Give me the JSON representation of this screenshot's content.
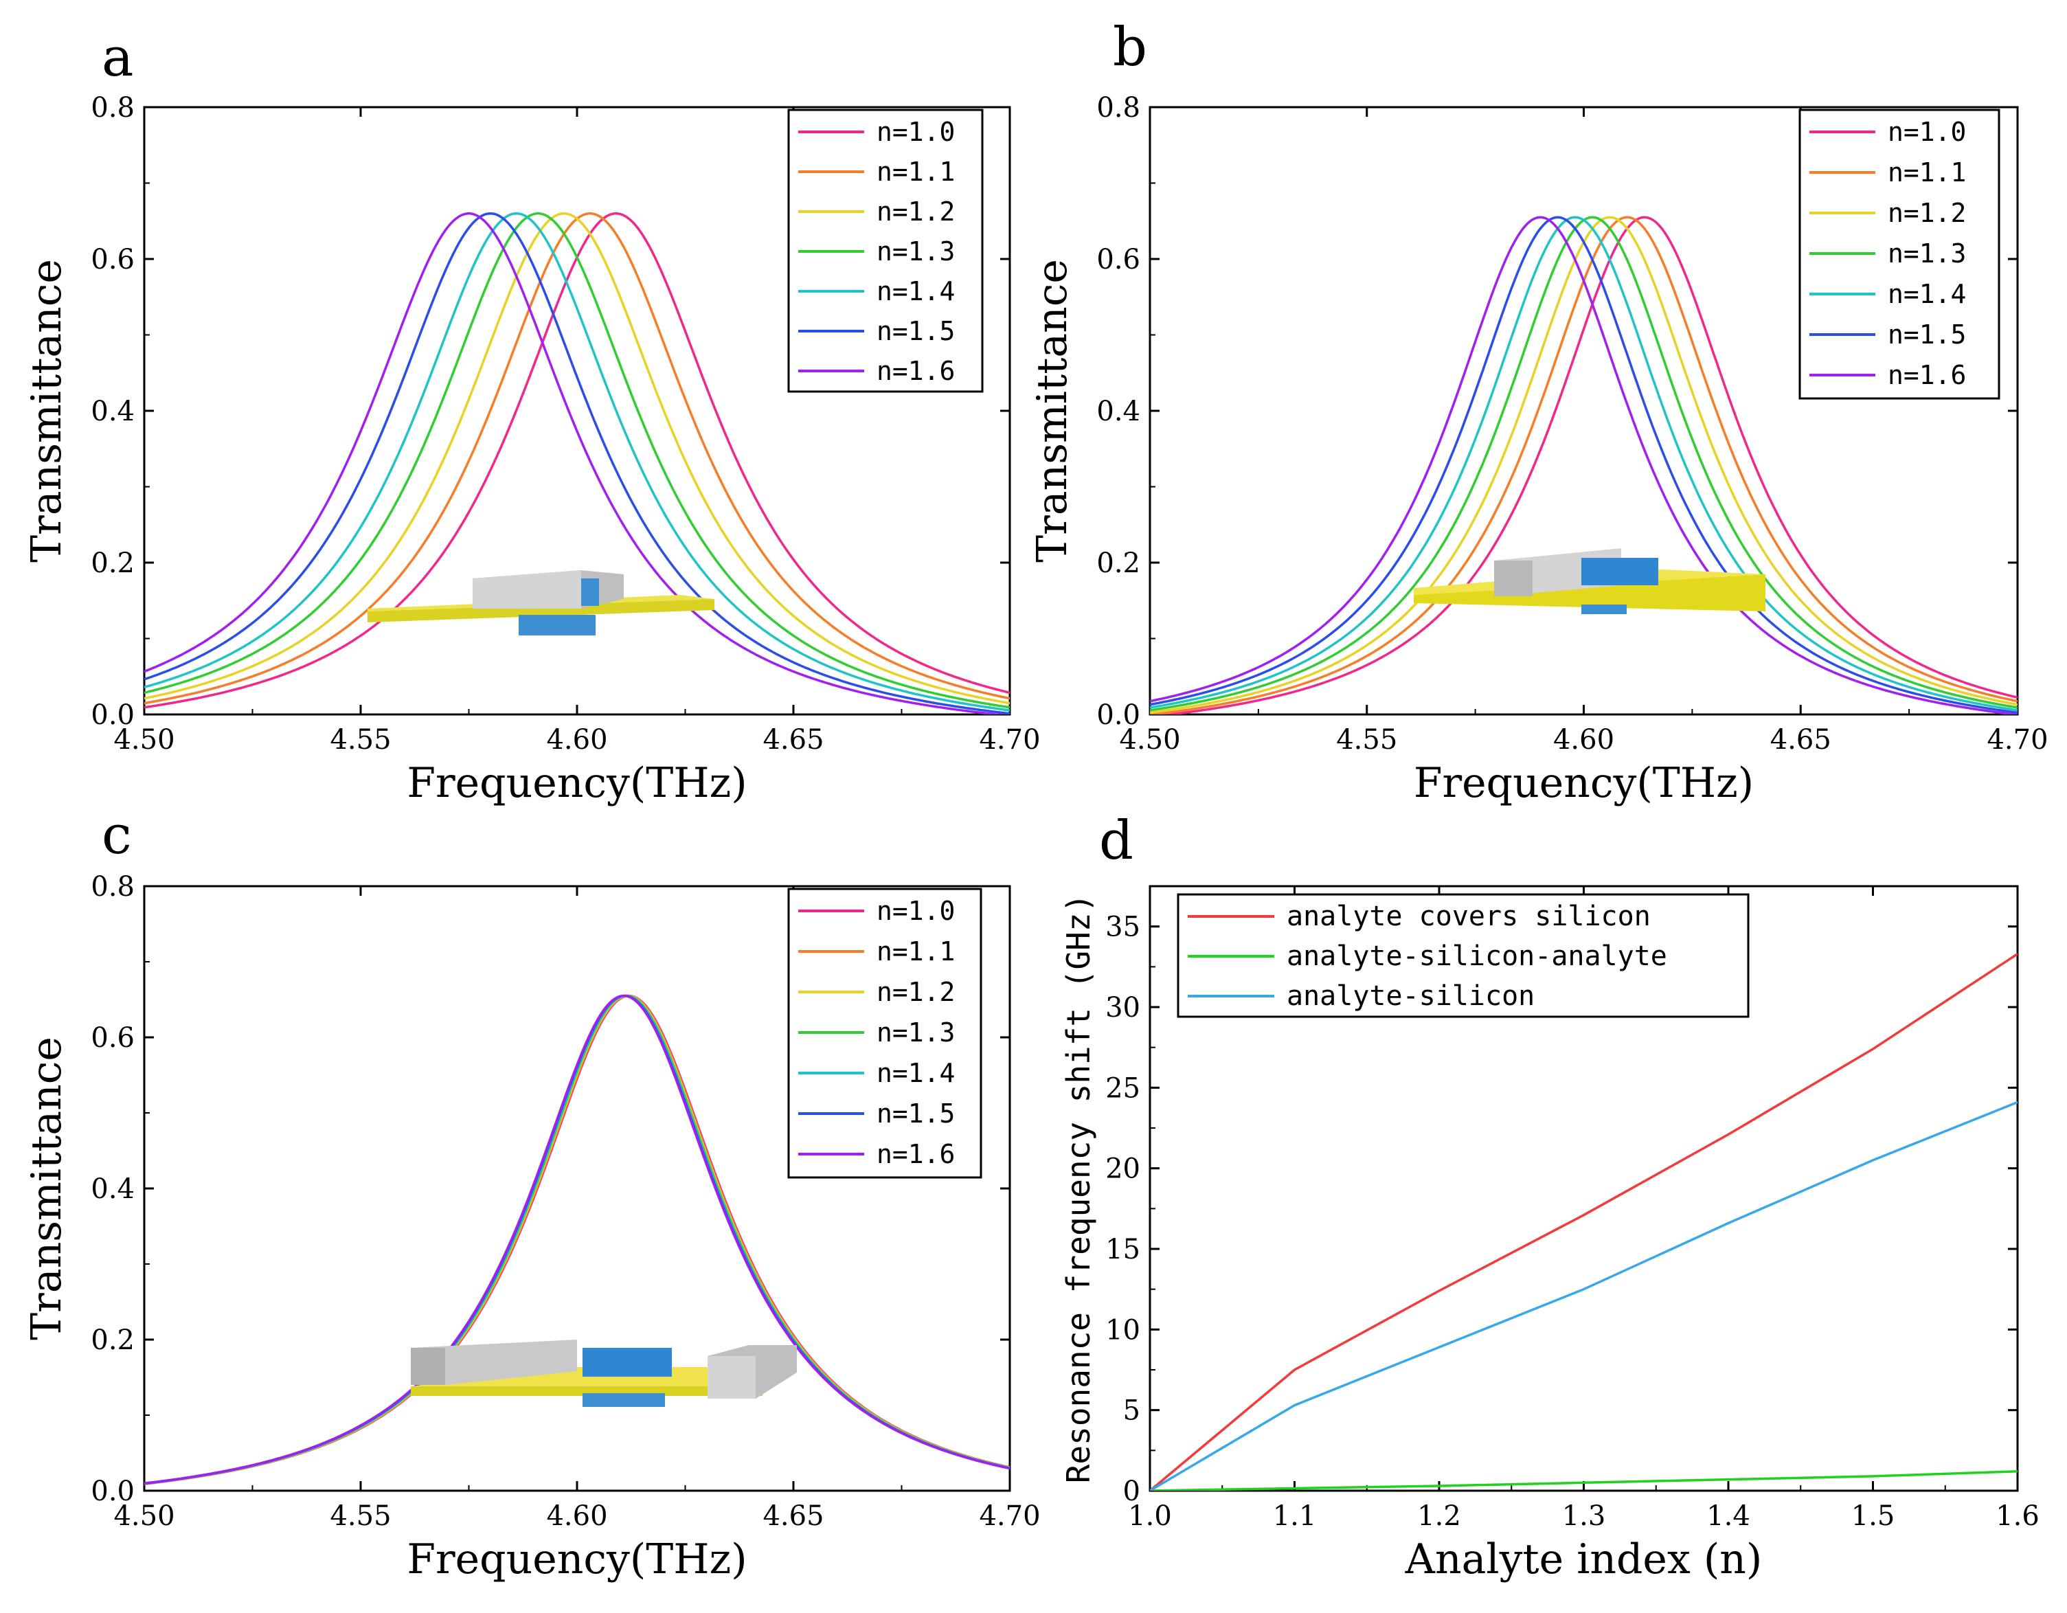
{
  "chart_data": [
    {
      "id": "a",
      "type": "line",
      "panel_label": "a",
      "xlabel": "Frequency(THz)",
      "ylabel": "Transmittance",
      "xlim": [
        4.5,
        4.7
      ],
      "ylim": [
        0.0,
        0.8
      ],
      "xticks": [
        "4.50",
        "4.55",
        "4.60",
        "4.65",
        "4.70"
      ],
      "yticks": [
        "0.0",
        "0.2",
        "0.4",
        "0.6",
        "0.8"
      ],
      "legend_position": "top-right",
      "curve_model": "lorentzian",
      "series": [
        {
          "name": "n=1.0",
          "color": "#f0288c",
          "peak_x": 4.609,
          "peak_y": 0.66,
          "width": 0.06,
          "base": -0.04
        },
        {
          "name": "n=1.1",
          "color": "#f47e2a",
          "peak_x": 4.603,
          "peak_y": 0.66,
          "width": 0.06,
          "base": -0.04
        },
        {
          "name": "n=1.2",
          "color": "#e8d228",
          "peak_x": 4.597,
          "peak_y": 0.66,
          "width": 0.06,
          "base": -0.04
        },
        {
          "name": "n=1.3",
          "color": "#32cd32",
          "peak_x": 4.591,
          "peak_y": 0.66,
          "width": 0.06,
          "base": -0.04
        },
        {
          "name": "n=1.4",
          "color": "#20c4c8",
          "peak_x": 4.586,
          "peak_y": 0.66,
          "width": 0.06,
          "base": -0.04
        },
        {
          "name": "n=1.5",
          "color": "#2b4ee8",
          "peak_x": 4.58,
          "peak_y": 0.66,
          "width": 0.06,
          "base": -0.04
        },
        {
          "name": "n=1.6",
          "color": "#a020f0",
          "peak_x": 4.575,
          "peak_y": 0.66,
          "width": 0.06,
          "base": -0.04
        }
      ]
    },
    {
      "id": "b",
      "type": "line",
      "panel_label": "b",
      "xlabel": "Frequency(THz)",
      "ylabel": "Transmittance",
      "xlim": [
        4.5,
        4.7
      ],
      "ylim": [
        0.0,
        0.8
      ],
      "xticks": [
        "4.50",
        "4.55",
        "4.60",
        "4.65",
        "4.70"
      ],
      "yticks": [
        "0.0",
        "0.2",
        "0.4",
        "0.6",
        "0.8"
      ],
      "legend_position": "top-right",
      "curve_model": "lorentzian",
      "series": [
        {
          "name": "n=1.0",
          "color": "#f0288c",
          "peak_x": 4.614,
          "peak_y": 0.655,
          "width": 0.054,
          "base": -0.04
        },
        {
          "name": "n=1.1",
          "color": "#f47e2a",
          "peak_x": 4.61,
          "peak_y": 0.655,
          "width": 0.054,
          "base": -0.04
        },
        {
          "name": "n=1.2",
          "color": "#e8d228",
          "peak_x": 4.606,
          "peak_y": 0.655,
          "width": 0.054,
          "base": -0.04
        },
        {
          "name": "n=1.3",
          "color": "#32cd32",
          "peak_x": 4.602,
          "peak_y": 0.655,
          "width": 0.054,
          "base": -0.04
        },
        {
          "name": "n=1.4",
          "color": "#20c4c8",
          "peak_x": 4.598,
          "peak_y": 0.655,
          "width": 0.054,
          "base": -0.04
        },
        {
          "name": "n=1.5",
          "color": "#2b4ee8",
          "peak_x": 4.594,
          "peak_y": 0.655,
          "width": 0.054,
          "base": -0.04
        },
        {
          "name": "n=1.6",
          "color": "#a020f0",
          "peak_x": 4.59,
          "peak_y": 0.655,
          "width": 0.054,
          "base": -0.04
        }
      ]
    },
    {
      "id": "c",
      "type": "line",
      "panel_label": "c",
      "xlabel": "Frequency(THz)",
      "ylabel": "Transmittance",
      "xlim": [
        4.5,
        4.7
      ],
      "ylim": [
        0.0,
        0.8
      ],
      "xticks": [
        "4.50",
        "4.55",
        "4.60",
        "4.65",
        "4.70"
      ],
      "yticks": [
        "0.0",
        "0.2",
        "0.4",
        "0.6",
        "0.8"
      ],
      "legend_position": "top-right",
      "curve_model": "lorentzian",
      "series": [
        {
          "name": "n=1.0",
          "color": "#f0288c",
          "peak_x": 4.612,
          "peak_y": 0.655,
          "width": 0.055,
          "base": -0.03
        },
        {
          "name": "n=1.1",
          "color": "#f47e2a",
          "peak_x": 4.6118,
          "peak_y": 0.655,
          "width": 0.055,
          "base": -0.03
        },
        {
          "name": "n=1.2",
          "color": "#e8d228",
          "peak_x": 4.6116,
          "peak_y": 0.655,
          "width": 0.055,
          "base": -0.03
        },
        {
          "name": "n=1.3",
          "color": "#32cd32",
          "peak_x": 4.6114,
          "peak_y": 0.655,
          "width": 0.055,
          "base": -0.03
        },
        {
          "name": "n=1.4",
          "color": "#20c4c8",
          "peak_x": 4.6112,
          "peak_y": 0.655,
          "width": 0.055,
          "base": -0.03
        },
        {
          "name": "n=1.5",
          "color": "#2b4ee8",
          "peak_x": 4.611,
          "peak_y": 0.655,
          "width": 0.055,
          "base": -0.03
        },
        {
          "name": "n=1.6",
          "color": "#a020f0",
          "peak_x": 4.6108,
          "peak_y": 0.655,
          "width": 0.055,
          "base": -0.03
        }
      ]
    },
    {
      "id": "d",
      "type": "line",
      "panel_label": "d",
      "xlabel": "Analyte index (n)",
      "ylabel": "Resonance frequency shift (GHz)",
      "xlim": [
        1.0,
        1.6
      ],
      "ylim": [
        0,
        37.5
      ],
      "xticks": [
        "1.0",
        "1.1",
        "1.2",
        "1.3",
        "1.4",
        "1.5",
        "1.6"
      ],
      "yticks": [
        "0",
        "5",
        "10",
        "15",
        "20",
        "25",
        "30",
        "35"
      ],
      "legend_position": "top-left",
      "x": [
        1.0,
        1.1,
        1.2,
        1.3,
        1.4,
        1.5,
        1.6
      ],
      "series": [
        {
          "name": "analyte covers silicon",
          "color": "#f03c3c",
          "values": [
            0,
            7.5,
            12.4,
            17.1,
            22.1,
            27.4,
            33.3
          ]
        },
        {
          "name": "analyte-silicon-analyte",
          "color": "#1ed21e",
          "values": [
            0,
            0.15,
            0.3,
            0.5,
            0.7,
            0.9,
            1.2
          ]
        },
        {
          "name": "analyte-silicon",
          "color": "#3aa8e6",
          "values": [
            0,
            5.3,
            8.9,
            12.5,
            16.6,
            20.5,
            24.1
          ]
        }
      ]
    }
  ]
}
